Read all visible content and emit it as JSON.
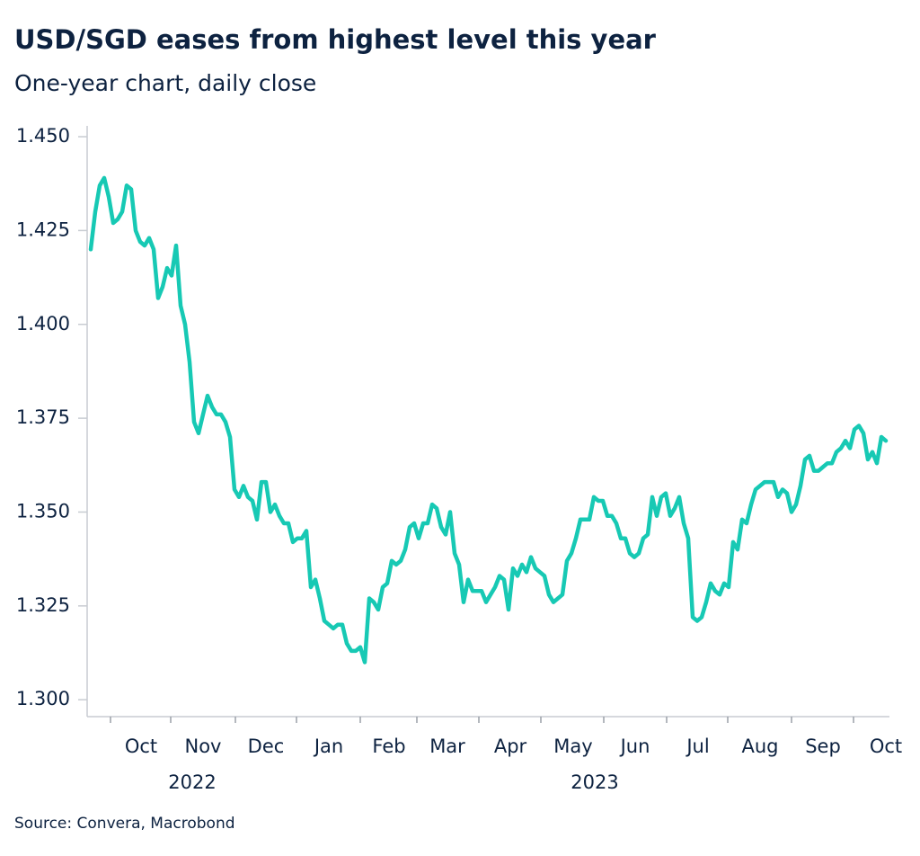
{
  "chart_data": {
    "type": "line",
    "title": "USD/SGD eases from highest level this year",
    "subtitle": "One-year chart, daily close",
    "source": "Source: Convera, Macrobond",
    "color": "#17c9b4",
    "values": [
      1.42,
      1.43,
      1.437,
      1.439,
      1.434,
      1.427,
      1.428,
      1.43,
      1.437,
      1.436,
      1.425,
      1.422,
      1.421,
      1.423,
      1.42,
      1.407,
      1.41,
      1.415,
      1.413,
      1.421,
      1.405,
      1.4,
      1.39,
      1.374,
      1.371,
      1.376,
      1.381,
      1.378,
      1.376,
      1.376,
      1.374,
      1.37,
      1.356,
      1.354,
      1.357,
      1.354,
      1.353,
      1.348,
      1.358,
      1.358,
      1.35,
      1.352,
      1.349,
      1.347,
      1.347,
      1.342,
      1.343,
      1.343,
      1.345,
      1.33,
      1.332,
      1.327,
      1.321,
      1.32,
      1.319,
      1.32,
      1.32,
      1.315,
      1.313,
      1.313,
      1.314,
      1.31,
      1.327,
      1.326,
      1.324,
      1.33,
      1.331,
      1.337,
      1.336,
      1.337,
      1.34,
      1.346,
      1.347,
      1.343,
      1.347,
      1.347,
      1.352,
      1.351,
      1.346,
      1.344,
      1.35,
      1.339,
      1.336,
      1.326,
      1.332,
      1.329,
      1.329,
      1.329,
      1.326,
      1.328,
      1.33,
      1.333,
      1.332,
      1.324,
      1.335,
      1.333,
      1.336,
      1.334,
      1.338,
      1.335,
      1.334,
      1.333,
      1.328,
      1.326,
      1.327,
      1.328,
      1.337,
      1.339,
      1.343,
      1.348,
      1.348,
      1.348,
      1.354,
      1.353,
      1.353,
      1.349,
      1.349,
      1.347,
      1.343,
      1.343,
      1.339,
      1.338,
      1.339,
      1.343,
      1.344,
      1.354,
      1.349,
      1.354,
      1.355,
      1.349,
      1.351,
      1.354,
      1.347,
      1.343,
      1.322,
      1.321,
      1.322,
      1.326,
      1.331,
      1.329,
      1.328,
      1.331,
      1.33,
      1.342,
      1.34,
      1.348,
      1.347,
      1.352,
      1.356,
      1.357,
      1.358,
      1.358,
      1.358,
      1.354,
      1.356,
      1.355,
      1.35,
      1.352,
      1.357,
      1.364,
      1.365,
      1.361,
      1.361,
      1.362,
      1.363,
      1.363,
      1.366,
      1.367,
      1.369,
      1.367,
      1.372,
      1.373,
      1.371,
      1.364,
      1.366,
      1.363,
      1.37,
      1.369
    ],
    "xlim": [
      -0.8,
      177.8
    ],
    "xticks": [
      4.4,
      17.8,
      32.2,
      45.8,
      60,
      72.6,
      86.4,
      100.2,
      114.2,
      128.2,
      141.8,
      156,
      169.8
    ],
    "xtick_labels": [
      {
        "value": 11.2,
        "label": "Oct"
      },
      {
        "value": 25,
        "label": "Nov"
      },
      {
        "value": 39,
        "label": "Dec"
      },
      {
        "value": 53,
        "label": "Jan"
      },
      {
        "value": 66.4,
        "label": "Feb"
      },
      {
        "value": 79.4,
        "label": "Mar"
      },
      {
        "value": 93.4,
        "label": "Apr"
      },
      {
        "value": 107.4,
        "label": "May"
      },
      {
        "value": 121.2,
        "label": "Jun"
      },
      {
        "value": 135.2,
        "label": "Jul"
      },
      {
        "value": 149,
        "label": "Aug"
      },
      {
        "value": 163,
        "label": "Sep"
      },
      {
        "value": 177,
        "label": "Oct"
      }
    ],
    "x_group_labels": [
      {
        "value": 22.6,
        "label": "2022"
      },
      {
        "value": 112.2,
        "label": "2023"
      }
    ],
    "ylim": [
      1.2955,
      1.453
    ],
    "yticks": [
      {
        "value": 1.3,
        "label": "1.300"
      },
      {
        "value": 1.325,
        "label": "1.325"
      },
      {
        "value": 1.35,
        "label": "1.350"
      },
      {
        "value": 1.375,
        "label": "1.375"
      },
      {
        "value": 1.4,
        "label": "1.400"
      },
      {
        "value": 1.425,
        "label": "1.425"
      },
      {
        "value": 1.45,
        "label": "1.450"
      }
    ],
    "grid": false
  }
}
